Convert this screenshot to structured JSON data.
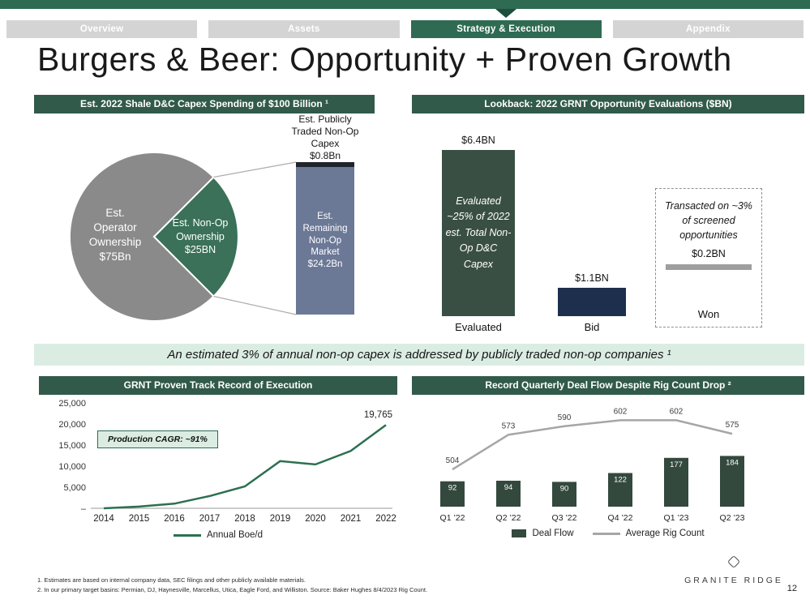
{
  "page": {
    "title": "Burgers & Beer: Opportunity + Proven Growth",
    "page_number": "12",
    "brand": "GRANITE RIDGE",
    "footnotes": [
      "1.  Estimates are based on internal company data, SEC filings and other publicly available materials.",
      "2.  In our primary target basins: Permian, DJ, Haynesville, Marcellus, Utica, Eagle Ford, and Williston. Source: Baker Hughes 8/4/2023 Rig Count."
    ]
  },
  "nav": {
    "tabs": [
      {
        "label": "Overview",
        "active": false
      },
      {
        "label": "Assets",
        "active": false
      },
      {
        "label": "Strategy & Execution",
        "active": true
      },
      {
        "label": "Appendix",
        "active": false
      }
    ]
  },
  "banner": {
    "text": "An estimated 3% of annual non-op capex is addressed by publicly traded non-op companies ¹"
  },
  "colors": {
    "brand_green": "#2E6B52",
    "header_green": "#315A4B",
    "notch_green": "#1E4E3C",
    "tab_gray": "#D4D4D4",
    "light_green": "#DBEDE3",
    "line_green": "#2C7050",
    "rig_gray": "#A6A6A6",
    "bar_green": "#34493E"
  },
  "chart_data": [
    {
      "id": "capex_pie",
      "type": "pie",
      "title": "Est. 2022 Shale D&C Capex Spending of $100 Billion ¹",
      "slices": [
        {
          "label": "Est. Operator Ownership $75Bn",
          "value": 75,
          "color": "#8A8A8A"
        },
        {
          "label": "Est. Non-Op Ownership $25BN",
          "value": 25,
          "color": "#3A7158"
        }
      ],
      "callout_bar": {
        "segments": [
          {
            "label": "Est. Publicly Traded Non-Op Capex",
            "value_label": "$0.8Bn",
            "value": 0.8,
            "color": "#20242C"
          },
          {
            "label": "Est. Remaining Non-Op Market",
            "value_label": "$24.2Bn",
            "value": 24.2,
            "color": "#6B7896"
          }
        ]
      }
    },
    {
      "id": "lookback",
      "type": "bar",
      "title": "Lookback: 2022 GRNT Opportunity Evaluations ($BN)",
      "categories": [
        "Evaluated",
        "Bid",
        "Won"
      ],
      "values": [
        6.4,
        1.1,
        0.2
      ],
      "value_labels": [
        "$6.4BN",
        "$1.1BN",
        "$0.2BN"
      ],
      "colors": [
        "#3A4F44",
        "#1E2F4D",
        "#9E9E9E"
      ],
      "annotations": [
        "Evaluated ~25% of 2022 est. Total Non-Op D&C Capex",
        "",
        "Transacted on ~3% of screened opportunities"
      ]
    },
    {
      "id": "production",
      "type": "line",
      "title": "GRNT Proven Track Record of Execution",
      "x": [
        "2014",
        "2015",
        "2016",
        "2017",
        "2018",
        "2019",
        "2020",
        "2021",
        "2022"
      ],
      "values": [
        0,
        400,
        1100,
        2900,
        5200,
        11200,
        10400,
        13600,
        19765
      ],
      "end_label": "19,765",
      "y_ticks": [
        "25,000",
        "20,000",
        "15,000",
        "10,000",
        "5,000",
        "–"
      ],
      "ylim": [
        0,
        25000
      ],
      "color": "#2C7050",
      "legend": [
        "Annual Boe/d"
      ],
      "annotation": "Production CAGR: ~91%"
    },
    {
      "id": "deal_flow",
      "type": "bar+line",
      "title": "Record Quarterly Deal Flow Despite Rig Count Drop ²",
      "categories": [
        "Q1 ’22",
        "Q2 ’22",
        "Q3 ’22",
        "Q4 ’22",
        "Q1 ’23",
        "Q2 ’23"
      ],
      "series": [
        {
          "name": "Deal Flow",
          "type": "bar",
          "values": [
            92,
            94,
            90,
            122,
            177,
            184
          ],
          "color": "#34493E"
        },
        {
          "name": "Average Rig Count",
          "type": "line",
          "values": [
            504,
            573,
            590,
            602,
            602,
            575
          ],
          "color": "#A6A6A6"
        }
      ]
    }
  ]
}
